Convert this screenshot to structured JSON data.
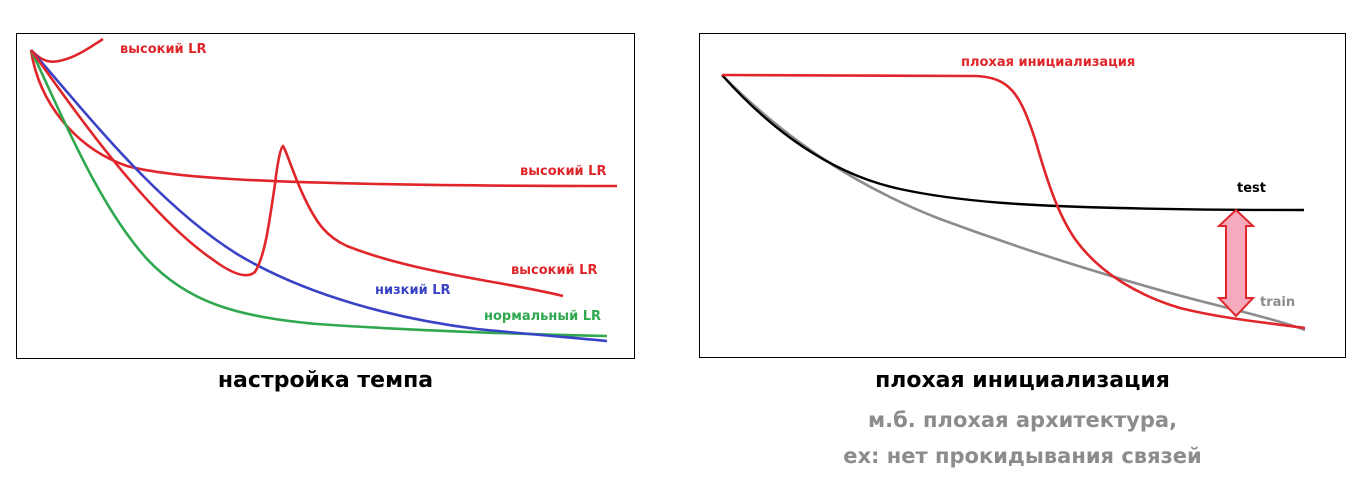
{
  "left_panel": {
    "caption": "настройка темпа",
    "curves": [
      {
        "name": "высокий LR",
        "color": "#e0262a",
        "kind": "divergent"
      },
      {
        "name": "высокий LR",
        "color": "#e0262a",
        "kind": "plateau"
      },
      {
        "name": "высокий LR",
        "color": "#e0262a",
        "kind": "spike"
      },
      {
        "name": "низкий LR",
        "color": "#3a43c6",
        "kind": "slow"
      },
      {
        "name": "нормальный LR",
        "color": "#2fa84f",
        "kind": "normal"
      }
    ]
  },
  "right_panel": {
    "title": "плохая инициализация",
    "subtitle_line1": "м.б. плохая архитектура,",
    "subtitle_line2": "ex: нет прокидывания связей",
    "curves": [
      {
        "name": "плохая инициализация",
        "color": "#e0262a"
      },
      {
        "name": "test",
        "color": "#000000"
      },
      {
        "name": "train",
        "color": "#8c8c8c"
      }
    ],
    "gap_arrow_color": "#f7a9bd",
    "gap_arrow_outline": "#e0262a"
  }
}
